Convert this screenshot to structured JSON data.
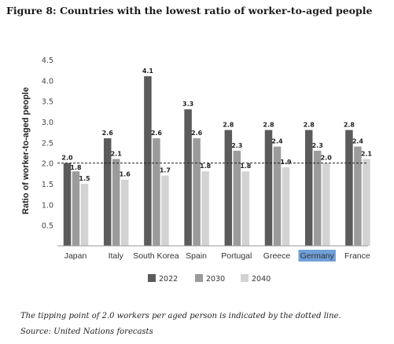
{
  "figure": {
    "title": "Figure 8: Countries with the lowest ratio of worker-to-aged people",
    "note": "The tipping point of 2.0 workers per aged person is indicated by the dotted line.",
    "source": "Source: United Nations forecasts"
  },
  "chart_data": {
    "type": "bar",
    "ylabel": "Ratio of worker-to-aged people",
    "xlabel": "",
    "ylim": [
      0,
      4.5
    ],
    "yticks": [
      "4.5",
      "4.0",
      "3.5",
      "3.0",
      "2.5",
      "2.0",
      "1.5",
      "1.0",
      "0.5"
    ],
    "categories": [
      "Japan",
      "Italy",
      "South Korea",
      "Spain",
      "Portugal",
      "Greece",
      "Germany",
      "France"
    ],
    "highlight_category": "Germany",
    "series": [
      {
        "name": "2022",
        "color": "#5b5b5b",
        "values": [
          2.0,
          2.6,
          4.1,
          3.3,
          2.8,
          2.8,
          2.8,
          2.8
        ]
      },
      {
        "name": "2030",
        "color": "#9b9b9b",
        "values": [
          1.8,
          2.1,
          2.6,
          2.6,
          2.3,
          2.4,
          2.3,
          2.4
        ]
      },
      {
        "name": "2040",
        "color": "#d3d3d3",
        "values": [
          1.5,
          1.6,
          1.7,
          1.8,
          1.8,
          1.9,
          2.0,
          2.1
        ]
      }
    ],
    "value_labels": [
      [
        "2.0",
        "2.6",
        "4.1",
        "3.3",
        "2.8",
        "2.8",
        "2.8",
        "2.8"
      ],
      [
        "1.8",
        "2.1",
        "2.6",
        "2.6",
        "2.3",
        "2.4",
        "2.3",
        "2.4"
      ],
      [
        "1.5",
        "1.6",
        "1.7",
        "1.8",
        "1.8",
        "1.9",
        "2.0",
        "2.1"
      ]
    ],
    "reference_line": {
      "value": 2.0,
      "style": "dotted"
    },
    "legend_position": "bottom",
    "grid": false,
    "highlight_color": "#6fa0d8"
  }
}
